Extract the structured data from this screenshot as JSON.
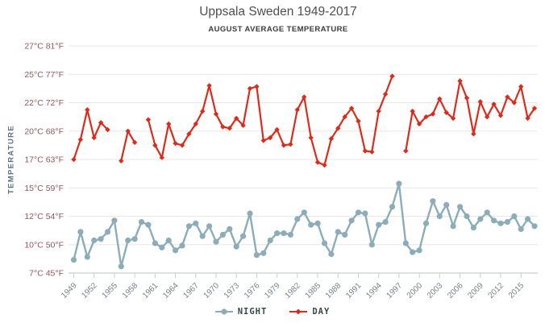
{
  "chart_data": {
    "type": "line",
    "title": "Uppsala Sweden 1949-2017",
    "subtitle": "AUGUST AVERAGE TEMPERATURE",
    "grid": true,
    "legend_position": "bottom",
    "y_axis": {
      "title": "TEMPERATURE",
      "tick_labels": [
        "27°C 81°F",
        "25°C 77°F",
        "22°C 72°F",
        "20°C 68°F",
        "17°C 63°F",
        "15°C 59°F",
        "12°C 54°F",
        "10°C 50°F",
        "7°C 45°F"
      ],
      "stops_celsius": [
        27,
        25,
        22,
        20,
        17,
        15,
        12,
        10,
        7
      ]
    },
    "x_axis": {
      "min": 1949,
      "max": 2017,
      "tick_years": [
        1949,
        1952,
        1955,
        1958,
        1961,
        1964,
        1967,
        1970,
        1973,
        1976,
        1979,
        1982,
        1985,
        1988,
        1991,
        1994,
        1997,
        2000,
        2003,
        2006,
        2009,
        2012,
        2015
      ]
    },
    "series": [
      {
        "name": "NIGHT",
        "unit": "°C",
        "color": "#8cadb8",
        "marker": "circle",
        "values": [
          8.4,
          10.9,
          8.7,
          10.3,
          10.4,
          10.9,
          11.7,
          7.7,
          10.3,
          10.4,
          11.6,
          11.4,
          10.1,
          9.7,
          10.3,
          9.4,
          9.9,
          11.3,
          11.5,
          10.6,
          11.3,
          10.2,
          10.7,
          11.1,
          9.8,
          10.6,
          12.3,
          8.9,
          9.1,
          10.3,
          10.8,
          10.8,
          10.7,
          11.8,
          12.4,
          11.4,
          11.5,
          10.1,
          9.0,
          10.9,
          10.7,
          11.7,
          12.4,
          12.3,
          10.0,
          11.4,
          11.6,
          13.0,
          15.3,
          10.1,
          9.2,
          9.4,
          11.5,
          13.6,
          12.0,
          13.2,
          11.3,
          13.0,
          12.0,
          11.2,
          11.8,
          12.4,
          11.7,
          11.5,
          11.6,
          12.0,
          11.1,
          11.8,
          11.3
        ]
      },
      {
        "name": "DAY",
        "unit": "°C",
        "color": "#dd2b1b",
        "marker": "diamond",
        "values": [
          17.0,
          19.1,
          21.5,
          19.3,
          20.6,
          20.1,
          null,
          16.9,
          20.0,
          18.8,
          null,
          20.8,
          18.5,
          17.2,
          20.5,
          18.7,
          18.5,
          19.7,
          20.5,
          21.4,
          23.8,
          21.2,
          20.3,
          20.2,
          20.9,
          20.4,
          23.5,
          23.7,
          19.0,
          19.3,
          20.1,
          18.5,
          18.6,
          21.5,
          22.6,
          19.3,
          16.8,
          16.6,
          19.2,
          20.2,
          21.0,
          21.6,
          20.7,
          17.9,
          17.8,
          21.4,
          22.9,
          24.8,
          null,
          17.9,
          21.4,
          20.5,
          21.0,
          21.2,
          22.4,
          21.3,
          20.9,
          24.3,
          22.5,
          19.7,
          22.1,
          21.0,
          21.9,
          21.1,
          22.6,
          22.0,
          23.7,
          20.9,
          21.6
        ]
      }
    ],
    "colors": {
      "grid": "#e7e7e7",
      "axis": "#c7cdd2",
      "y_label": "#95575c",
      "x_label": "#75828b",
      "title": "#4f4f4f",
      "subtitle": "#3d3d3d",
      "legend_text": "#37474f",
      "background": "#ffffff"
    }
  }
}
